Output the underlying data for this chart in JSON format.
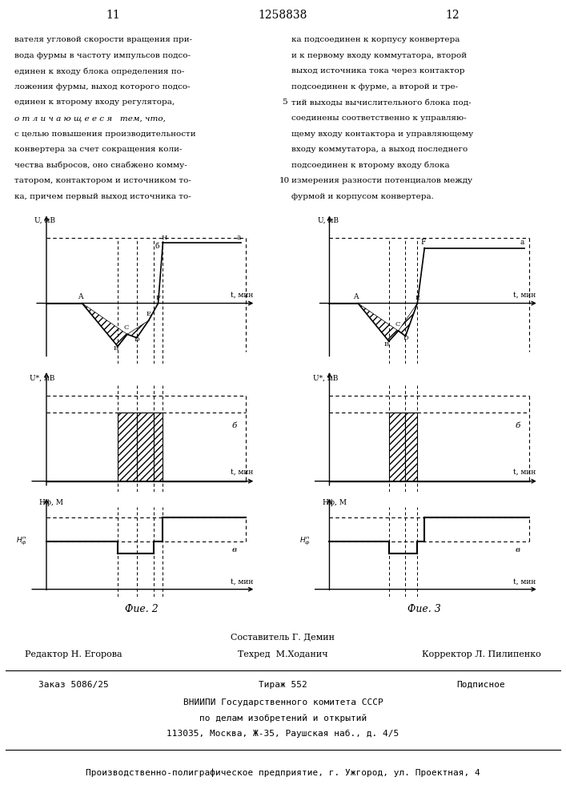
{
  "left_text": [
    "вателя угловой скорости вращения при-",
    "вода фурмы в частоту импульсов подсо-",
    "единен к входу блока определения по-",
    "ложения фурмы, выход которого подсо-",
    "единен к второму входу регулятора,",
    "о т л и ч а ю щ е е с я   тем, что,",
    "с целью повышения производительности",
    "конвертера за счет сокращения коли-",
    "чества выбросов, оно снабжено комму-",
    "татором, контактором и источником то-",
    "ка, причем первый выход источника то-"
  ],
  "right_text": [
    "ка подсоединен к корпусу конвертера",
    "и к первому входу коммутатора, второй",
    "выход источника тока через контактор",
    "подсоединен к фурме, а второй и тре-",
    "тий выходы вычислительного блока под-",
    "соединены соответственно к управляю-",
    "щему входу контактора и управляющему",
    "входу коммутатора, а выход последнего",
    "подсоединен к второму входу блока",
    "измерения разности потенциалов между",
    "фурмой и корпусом конвертера."
  ],
  "fig2_label": "Фие. 2",
  "fig3_label": "Фие. 3",
  "footer_sestavitel": "Составитель Г. Демин",
  "footer_editor": "Редактор Н. Егорова",
  "footer_tekhred": "Техред  М.Ходанич",
  "footer_korrektor": "Корректор Л. Пилипенко",
  "footer_zakaz": "Заказ 5086/25",
  "footer_tirazh": "Тираж 552",
  "footer_podpisnoe": "Подписное",
  "footer_vnipi": "ВНИИПИ Государственного комитета СССР",
  "footer_po_delam": "по делам изобретений и открытий",
  "footer_address": "113035, Москва, Ж-35, Раушская наб., д. 4/5",
  "footer_company": "Производственно-полиграфическое предприятие, г. Ужгород, ул. Проектная, 4"
}
